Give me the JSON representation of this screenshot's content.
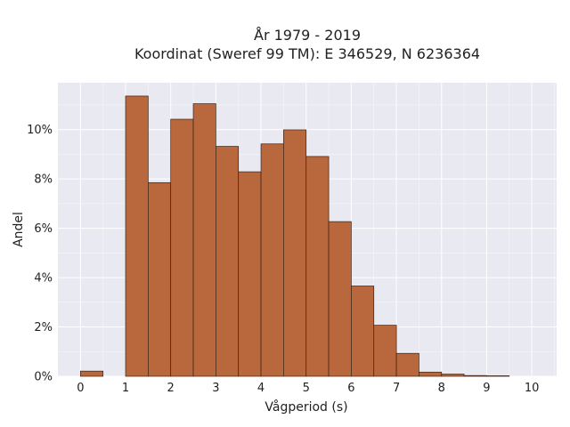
{
  "chart_data": {
    "type": "bar",
    "title_line1": "År 1979 - 2019",
    "title_line2": "Koordinat (Sweref 99 TM): E 346529, N 6236364",
    "xlabel": "Vågperiod (s)",
    "ylabel": "Andel",
    "bin_width": 0.5,
    "bins": [
      {
        "start": 0.0,
        "value": 0.0021
      },
      {
        "start": 0.5,
        "value": 0.0
      },
      {
        "start": 1.0,
        "value": 0.1136
      },
      {
        "start": 1.5,
        "value": 0.0785
      },
      {
        "start": 2.0,
        "value": 0.1042
      },
      {
        "start": 2.5,
        "value": 0.1105
      },
      {
        "start": 3.0,
        "value": 0.0932
      },
      {
        "start": 3.5,
        "value": 0.0829
      },
      {
        "start": 4.0,
        "value": 0.0942
      },
      {
        "start": 4.5,
        "value": 0.0999
      },
      {
        "start": 5.0,
        "value": 0.0891
      },
      {
        "start": 5.5,
        "value": 0.0627
      },
      {
        "start": 6.0,
        "value": 0.0366
      },
      {
        "start": 6.5,
        "value": 0.0207
      },
      {
        "start": 7.0,
        "value": 0.0093
      },
      {
        "start": 7.5,
        "value": 0.0017
      },
      {
        "start": 8.0,
        "value": 0.0009
      },
      {
        "start": 8.5,
        "value": 0.0003
      },
      {
        "start": 9.0,
        "value": 0.0002
      },
      {
        "start": 9.5,
        "value": 0.0
      },
      {
        "start": 10.0,
        "value": 0.0
      }
    ],
    "xlim": [
      -0.5,
      10.55
    ],
    "ylim": [
      0,
      0.119
    ],
    "x_ticks": [
      0,
      1,
      2,
      3,
      4,
      5,
      6,
      7,
      8,
      9,
      10
    ],
    "y_ticks": [
      0,
      0.02,
      0.04,
      0.06,
      0.08,
      0.1
    ],
    "y_tick_labels": [
      "0%",
      "2%",
      "4%",
      "6%",
      "8%",
      "10%"
    ],
    "grid": true,
    "colors": {
      "bar_fill": "#b9673d",
      "bar_edge": "#3a2415",
      "plot_background": "#e9e9f1",
      "grid": "#ffffff"
    }
  }
}
